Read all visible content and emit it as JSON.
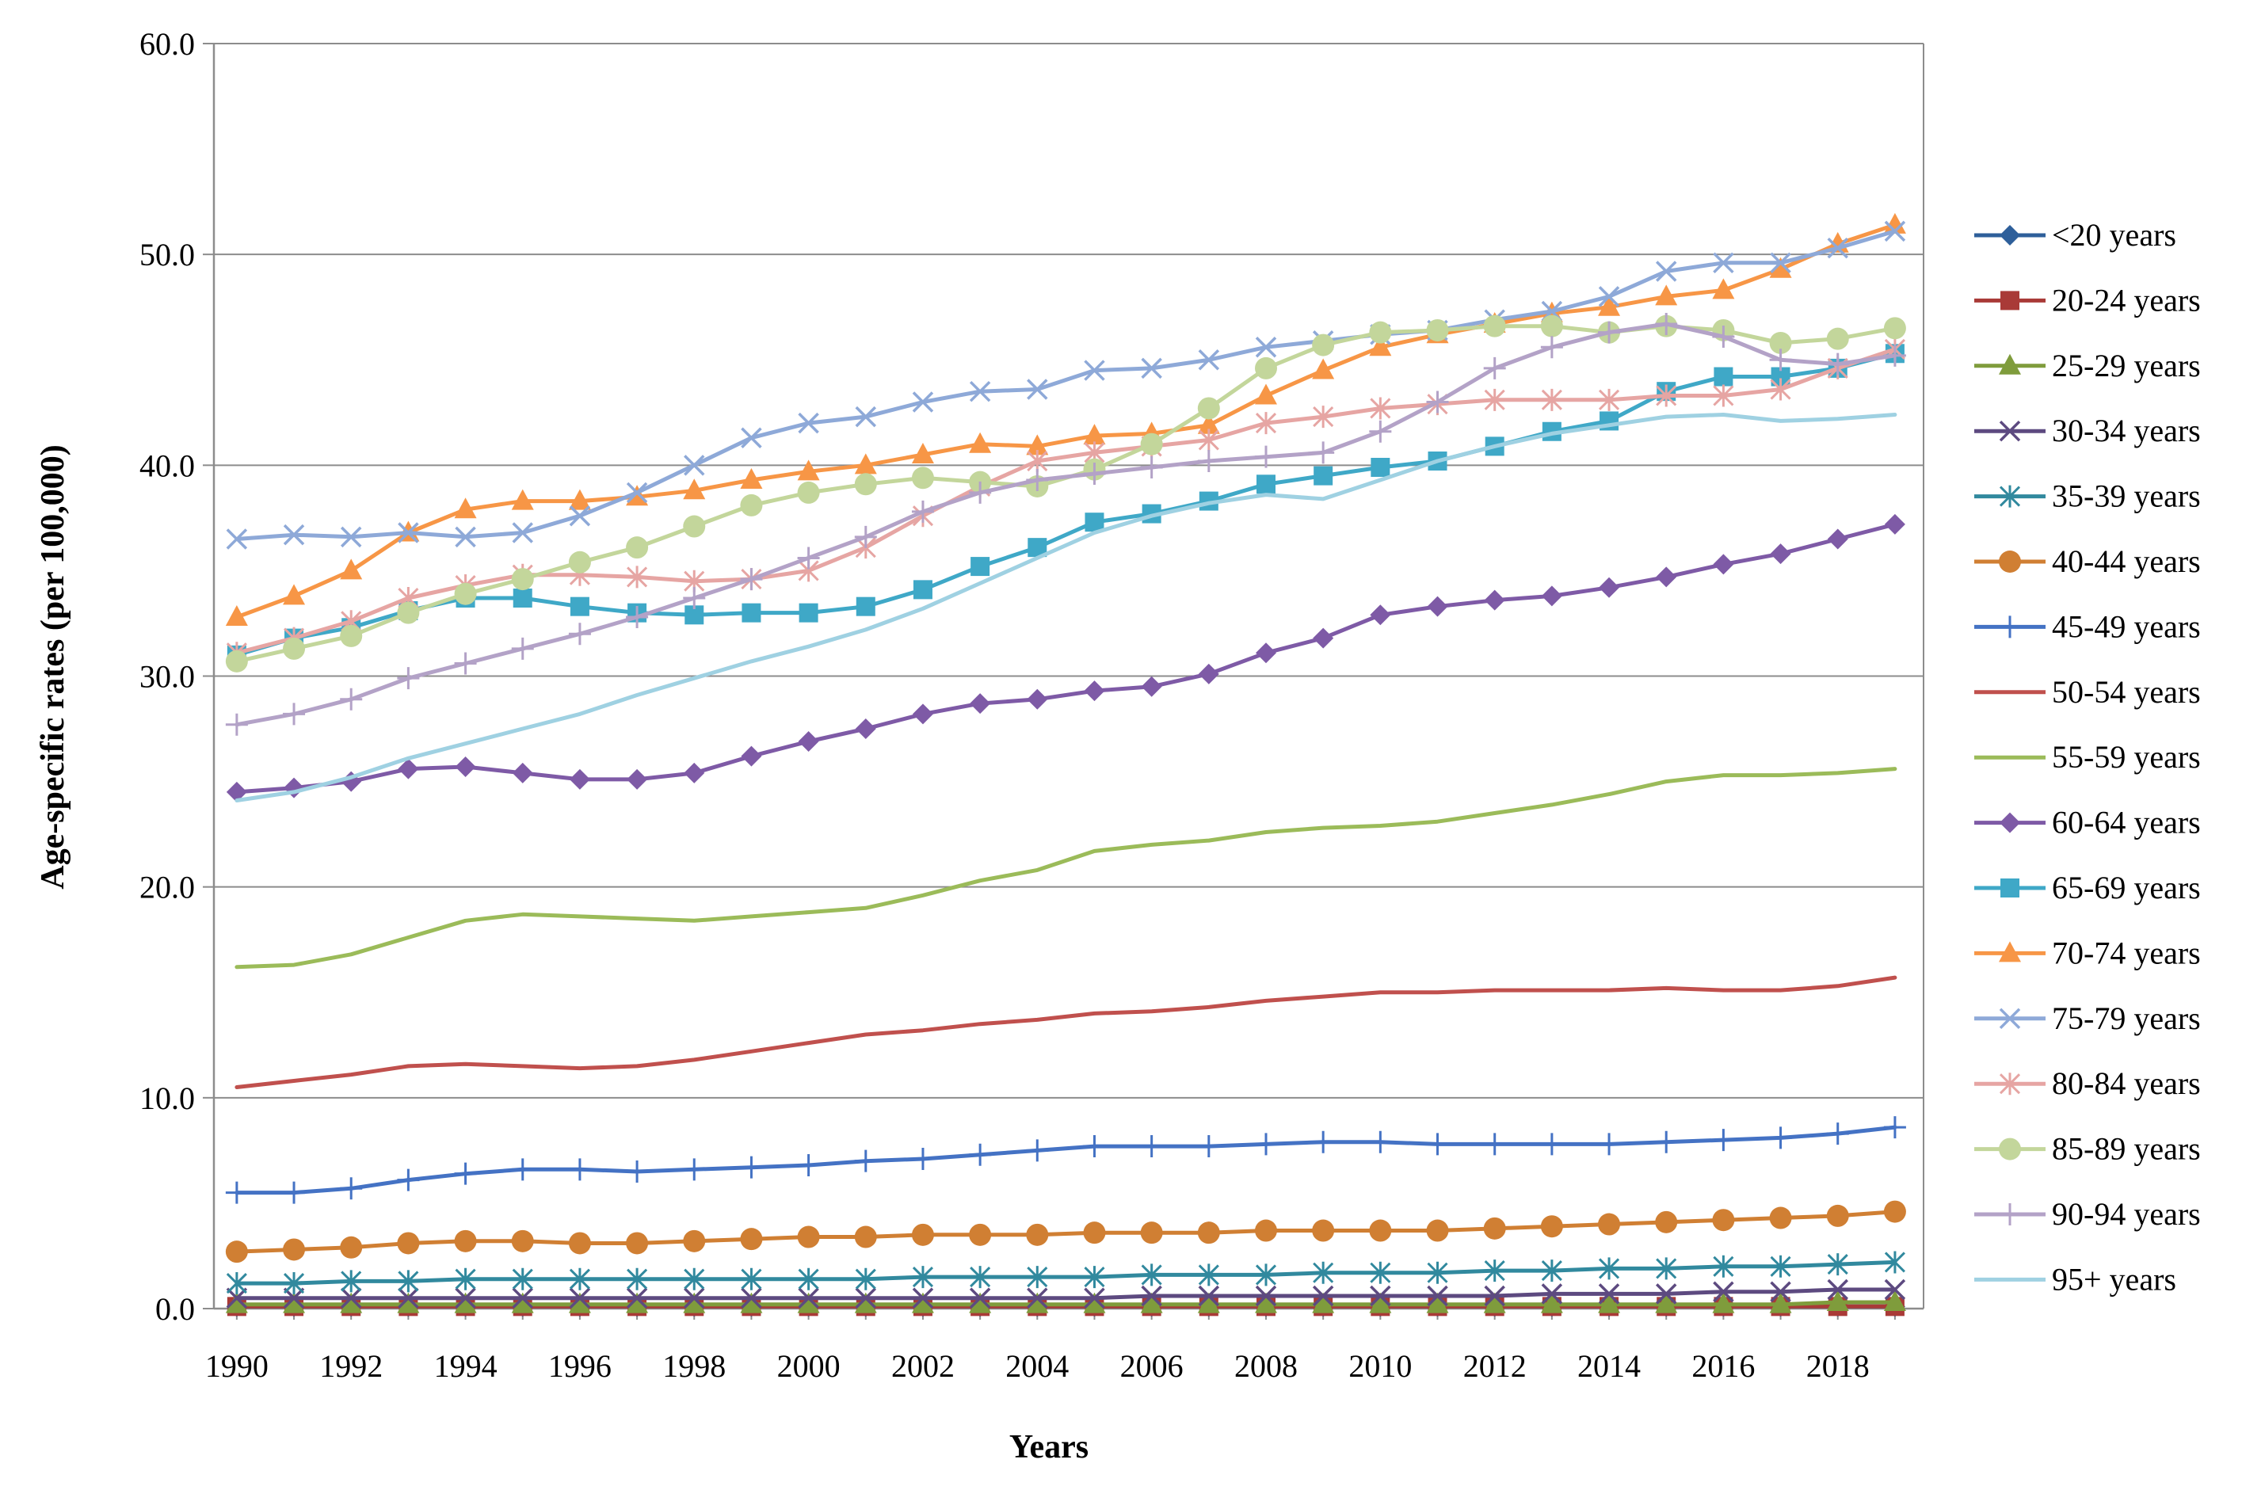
{
  "chart_data": {
    "type": "line",
    "title": "",
    "xlabel": "Years",
    "ylabel": "Age-specific rates (per 100,000)",
    "ylim": [
      0,
      60
    ],
    "y_ticks": [
      "0.0",
      "10.0",
      "20.0",
      "30.0",
      "40.0",
      "50.0",
      "60.0"
    ],
    "y_tick_values": [
      0,
      10,
      20,
      30,
      40,
      50,
      60
    ],
    "x_ticks": [
      "1990",
      "1992",
      "1994",
      "1996",
      "1998",
      "2000",
      "2002",
      "2004",
      "2006",
      "2008",
      "2010",
      "2012",
      "2014",
      "2016",
      "2018"
    ],
    "x_tick_values": [
      1990,
      1992,
      1994,
      1996,
      1998,
      2000,
      2002,
      2004,
      2006,
      2008,
      2010,
      2012,
      2014,
      2016,
      2018
    ],
    "xlim": [
      1989.6,
      2019.5
    ],
    "grid": "horizontal",
    "legend_position": "right",
    "x": [
      1990,
      1991,
      1992,
      1993,
      1994,
      1995,
      1996,
      1997,
      1998,
      1999,
      2000,
      2001,
      2002,
      2003,
      2004,
      2005,
      2006,
      2007,
      2008,
      2009,
      2010,
      2011,
      2012,
      2013,
      2014,
      2015,
      2016,
      2017,
      2018,
      2019
    ],
    "series": [
      {
        "name": "<20 years",
        "color": "#2e5f9a",
        "marker": "diamond",
        "values": [
          0.1,
          0.1,
          0.1,
          0.1,
          0.1,
          0.1,
          0.1,
          0.1,
          0.1,
          0.1,
          0.1,
          0.1,
          0.1,
          0.1,
          0.1,
          0.1,
          0.1,
          0.1,
          0.1,
          0.1,
          0.1,
          0.1,
          0.1,
          0.1,
          0.1,
          0.1,
          0.1,
          0.1,
          0.1,
          0.1
        ]
      },
      {
        "name": "20-24 years",
        "color": "#a93a37",
        "marker": "square",
        "values": [
          0.1,
          0.1,
          0.1,
          0.1,
          0.1,
          0.1,
          0.1,
          0.1,
          0.1,
          0.1,
          0.1,
          0.1,
          0.1,
          0.1,
          0.1,
          0.1,
          0.1,
          0.1,
          0.1,
          0.1,
          0.1,
          0.1,
          0.1,
          0.1,
          0.1,
          0.1,
          0.1,
          0.1,
          0.1,
          0.1
        ]
      },
      {
        "name": "25-29 years",
        "color": "#7f9c3c",
        "marker": "triangle",
        "values": [
          0.2,
          0.2,
          0.2,
          0.2,
          0.2,
          0.2,
          0.2,
          0.2,
          0.2,
          0.2,
          0.2,
          0.2,
          0.2,
          0.2,
          0.2,
          0.2,
          0.2,
          0.2,
          0.2,
          0.2,
          0.2,
          0.2,
          0.2,
          0.2,
          0.2,
          0.2,
          0.2,
          0.2,
          0.3,
          0.3
        ]
      },
      {
        "name": "30-34 years",
        "color": "#5d4a80",
        "marker": "x",
        "values": [
          0.5,
          0.5,
          0.5,
          0.5,
          0.5,
          0.5,
          0.5,
          0.5,
          0.5,
          0.5,
          0.5,
          0.5,
          0.5,
          0.5,
          0.5,
          0.5,
          0.6,
          0.6,
          0.6,
          0.6,
          0.6,
          0.6,
          0.6,
          0.7,
          0.7,
          0.7,
          0.8,
          0.8,
          0.9,
          0.9
        ]
      },
      {
        "name": "35-39 years",
        "color": "#31899e",
        "marker": "asterisk",
        "values": [
          1.2,
          1.2,
          1.3,
          1.3,
          1.4,
          1.4,
          1.4,
          1.4,
          1.4,
          1.4,
          1.4,
          1.4,
          1.5,
          1.5,
          1.5,
          1.5,
          1.6,
          1.6,
          1.6,
          1.7,
          1.7,
          1.7,
          1.8,
          1.8,
          1.9,
          1.9,
          2.0,
          2.0,
          2.1,
          2.2
        ]
      },
      {
        "name": "40-44 years",
        "color": "#d07f33",
        "marker": "circle",
        "values": [
          2.7,
          2.8,
          2.9,
          3.1,
          3.2,
          3.2,
          3.1,
          3.1,
          3.2,
          3.3,
          3.4,
          3.4,
          3.5,
          3.5,
          3.5,
          3.6,
          3.6,
          3.6,
          3.7,
          3.7,
          3.7,
          3.7,
          3.8,
          3.9,
          4.0,
          4.1,
          4.2,
          4.3,
          4.4,
          4.6
        ]
      },
      {
        "name": "45-49 years",
        "color": "#4472c4",
        "marker": "plus",
        "values": [
          5.5,
          5.5,
          5.7,
          6.1,
          6.4,
          6.6,
          6.6,
          6.5,
          6.6,
          6.7,
          6.8,
          7.0,
          7.1,
          7.3,
          7.5,
          7.7,
          7.7,
          7.7,
          7.8,
          7.9,
          7.9,
          7.8,
          7.8,
          7.8,
          7.8,
          7.9,
          8.0,
          8.1,
          8.3,
          8.6
        ]
      },
      {
        "name": "50-54 years",
        "color": "#c0504d",
        "marker": "none",
        "values": [
          10.5,
          10.8,
          11.1,
          11.5,
          11.6,
          11.5,
          11.4,
          11.5,
          11.8,
          12.2,
          12.6,
          13.0,
          13.2,
          13.5,
          13.7,
          14.0,
          14.1,
          14.3,
          14.6,
          14.8,
          15.0,
          15.0,
          15.1,
          15.1,
          15.1,
          15.2,
          15.1,
          15.1,
          15.3,
          15.7
        ]
      },
      {
        "name": "55-59 years",
        "color": "#9bbb59",
        "marker": "none",
        "values": [
          16.2,
          16.3,
          16.8,
          17.6,
          18.4,
          18.7,
          18.6,
          18.5,
          18.4,
          18.6,
          18.8,
          19.0,
          19.6,
          20.3,
          20.8,
          21.7,
          22.0,
          22.2,
          22.6,
          22.8,
          22.9,
          23.1,
          23.5,
          23.9,
          24.4,
          25.0,
          25.3,
          25.3,
          25.4,
          25.6
        ]
      },
      {
        "name": "60-64 years",
        "color": "#7e5aa6",
        "marker": "diamond",
        "values": [
          24.5,
          24.7,
          25.0,
          25.6,
          25.7,
          25.4,
          25.1,
          25.1,
          25.4,
          26.2,
          26.9,
          27.5,
          28.2,
          28.7,
          28.9,
          29.3,
          29.5,
          30.1,
          31.1,
          31.8,
          32.9,
          33.3,
          33.6,
          33.8,
          34.2,
          34.7,
          35.3,
          35.8,
          36.5,
          37.2
        ]
      },
      {
        "name": "65-69 years",
        "color": "#3fa8c7",
        "marker": "square",
        "values": [
          31.0,
          31.8,
          32.3,
          33.1,
          33.7,
          33.7,
          33.3,
          33.0,
          32.9,
          33.0,
          33.0,
          33.3,
          34.1,
          35.2,
          36.1,
          37.3,
          37.7,
          38.3,
          39.1,
          39.5,
          39.9,
          40.2,
          40.9,
          41.6,
          42.1,
          43.5,
          44.2,
          44.2,
          44.6,
          45.3
        ]
      },
      {
        "name": "70-74 years",
        "color": "#f79646",
        "marker": "triangle",
        "values": [
          32.8,
          33.8,
          35.0,
          36.8,
          37.9,
          38.3,
          38.3,
          38.5,
          38.8,
          39.3,
          39.7,
          40.0,
          40.5,
          41.0,
          40.9,
          41.4,
          41.5,
          41.9,
          43.3,
          44.5,
          45.6,
          46.2,
          46.7,
          47.2,
          47.5,
          48.0,
          48.3,
          49.3,
          50.5,
          51.4
        ]
      },
      {
        "name": "75-79 years",
        "color": "#8ea9d8",
        "marker": "x",
        "values": [
          36.5,
          36.7,
          36.6,
          36.8,
          36.6,
          36.8,
          37.6,
          38.7,
          40.0,
          41.3,
          42.0,
          42.3,
          43.0,
          43.5,
          43.6,
          44.5,
          44.6,
          45.0,
          45.6,
          45.9,
          46.2,
          46.4,
          46.9,
          47.3,
          48.0,
          49.2,
          49.6,
          49.6,
          50.3,
          51.1
        ]
      },
      {
        "name": "80-84 years",
        "color": "#e6a5a3",
        "marker": "asterisk",
        "values": [
          31.1,
          31.8,
          32.6,
          33.7,
          34.3,
          34.8,
          34.8,
          34.7,
          34.5,
          34.6,
          35.0,
          36.1,
          37.6,
          39.0,
          40.2,
          40.6,
          40.9,
          41.2,
          42.0,
          42.3,
          42.7,
          42.9,
          43.1,
          43.1,
          43.1,
          43.3,
          43.3,
          43.6,
          44.6,
          45.5
        ]
      },
      {
        "name": "85-89 years",
        "color": "#c3d69b",
        "marker": "circle",
        "values": [
          30.7,
          31.3,
          31.9,
          33.0,
          33.9,
          34.6,
          35.4,
          36.1,
          37.1,
          38.1,
          38.7,
          39.1,
          39.4,
          39.2,
          39.0,
          39.8,
          41.0,
          42.7,
          44.6,
          45.7,
          46.3,
          46.4,
          46.6,
          46.6,
          46.3,
          46.6,
          46.4,
          45.8,
          46.0,
          46.5
        ]
      },
      {
        "name": "90-94 years",
        "color": "#b3a2c7",
        "marker": "plus",
        "values": [
          27.7,
          28.2,
          28.9,
          29.9,
          30.6,
          31.3,
          32.0,
          32.8,
          33.7,
          34.6,
          35.6,
          36.6,
          37.8,
          38.7,
          39.3,
          39.6,
          39.9,
          40.2,
          40.4,
          40.6,
          41.6,
          43.0,
          44.6,
          45.6,
          46.3,
          46.7,
          46.1,
          45.0,
          44.8,
          45.2
        ]
      },
      {
        "name": "95+ years",
        "color": "#9fd1e2",
        "marker": "none",
        "values": [
          24.1,
          24.5,
          25.2,
          26.1,
          26.8,
          27.5,
          28.2,
          29.1,
          29.9,
          30.7,
          31.4,
          32.2,
          33.2,
          34.4,
          35.6,
          36.8,
          37.6,
          38.2,
          38.6,
          38.4,
          39.3,
          40.2,
          40.9,
          41.5,
          41.9,
          42.3,
          42.4,
          42.1,
          42.2,
          42.4
        ]
      }
    ]
  }
}
